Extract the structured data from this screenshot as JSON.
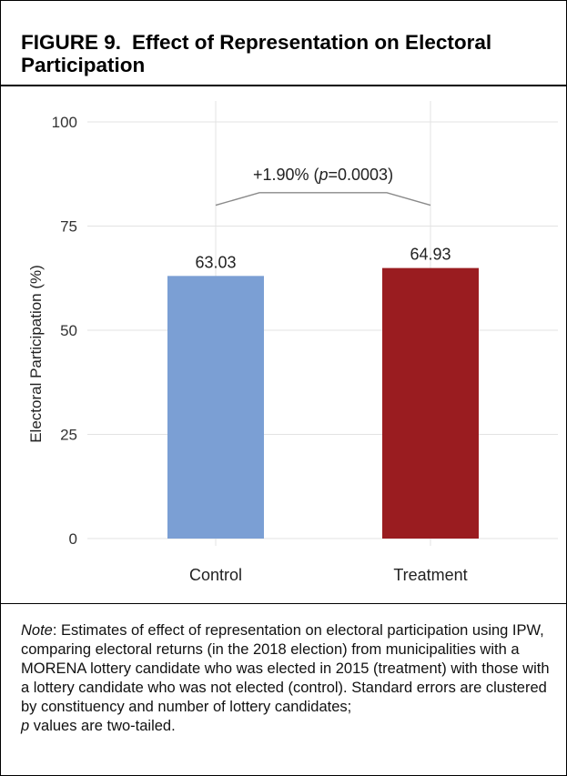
{
  "figure": {
    "number": "FIGURE 9.",
    "title": "Effect of Representation on Electoral Participation"
  },
  "chart_data": {
    "type": "bar",
    "categories": [
      "Control",
      "Treatment"
    ],
    "values": [
      63.03,
      64.93
    ],
    "value_labels": [
      "63.03",
      "64.93"
    ],
    "colors": [
      "#7B9FD4",
      "#9A1C20"
    ],
    "ylabel": "Electoral Participation (%)",
    "ylim": [
      0,
      100
    ],
    "yticks": [
      0,
      25,
      50,
      75,
      100
    ],
    "grid": true,
    "annotation": {
      "prefix": "+1.90% (",
      "p_symbol": "p",
      "suffix": "=0.0003)",
      "bracket_low": 80,
      "bracket_high": 83
    }
  },
  "note": {
    "label": "Note",
    "body": ": Estimates of effect of representation on electoral participation using IPW, comparing electoral returns (in the 2018 election) from municipalities with a MORENA lottery candidate who was elected in 2015 (treatment) with those with a lottery candidate who was not elected (control). Standard errors are clustered by constituency and number of lottery candidates;",
    "p_symbol": "p",
    "tail": " values are two-tailed."
  }
}
